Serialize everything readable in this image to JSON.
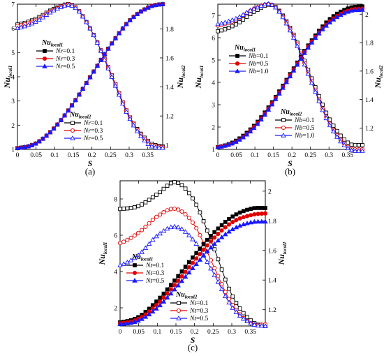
{
  "chart_data": [
    {
      "type": "line",
      "panel_label": "(a)",
      "xlabel": "S",
      "ylabel_left": {
        "main": "Nu",
        "sub": "local1"
      },
      "ylabel_right": {
        "main": "Nu",
        "sub": "local2"
      },
      "xlim": [
        0,
        0.39
      ],
      "ylim_left": [
        1,
        7
      ],
      "ylim_right": [
        0.97,
        1.97
      ],
      "xticks": [
        "0",
        "0.05",
        "0.1",
        "0.15",
        "0.2",
        "0.25",
        "0.3",
        "0.35"
      ],
      "yticks_left": [
        "1",
        "2",
        "3",
        "4",
        "5",
        "6",
        "7"
      ],
      "yticks_right": [
        "1",
        "1.2",
        "1.4",
        "1.6",
        "1.8"
      ],
      "legend_local1": {
        "title": {
          "main": "Nu",
          "sub": "local1"
        },
        "param": "Nr",
        "entries": [
          "=0.1",
          "=0.3",
          "=0.5"
        ]
      },
      "legend_local2": {
        "title": {
          "main": "Nu",
          "sub": "local2"
        },
        "param": "Nr",
        "entries": [
          "=0.1",
          "=0.3",
          "=0.5"
        ]
      },
      "local1_series": [
        {
          "x": [
            0,
            0.05,
            0.1,
            0.15,
            0.2,
            0.25,
            0.3,
            0.35,
            0.39
          ],
          "y": [
            1.05,
            1.25,
            1.9,
            2.9,
            4.1,
            5.3,
            6.3,
            6.85,
            7.0
          ]
        },
        {
          "x": [
            0,
            0.05,
            0.1,
            0.15,
            0.2,
            0.25,
            0.3,
            0.35,
            0.39
          ],
          "y": [
            1.05,
            1.25,
            1.9,
            2.9,
            4.1,
            5.3,
            6.3,
            6.85,
            7.0
          ]
        },
        {
          "x": [
            0,
            0.05,
            0.1,
            0.15,
            0.2,
            0.25,
            0.3,
            0.35,
            0.39
          ],
          "y": [
            1.05,
            1.25,
            1.9,
            2.9,
            4.1,
            5.3,
            6.3,
            6.85,
            7.0
          ]
        }
      ],
      "local2_series": [
        {
          "x": [
            0,
            0.05,
            0.1,
            0.15,
            0.2,
            0.25,
            0.3,
            0.35,
            0.39
          ],
          "y": [
            1.83,
            1.87,
            1.94,
            1.96,
            1.78,
            1.5,
            1.2,
            1.03,
            0.99
          ]
        },
        {
          "x": [
            0,
            0.05,
            0.1,
            0.15,
            0.2,
            0.25,
            0.3,
            0.35,
            0.39
          ],
          "y": [
            1.82,
            1.86,
            1.935,
            1.96,
            1.78,
            1.5,
            1.2,
            1.02,
            0.985
          ]
        },
        {
          "x": [
            0,
            0.05,
            0.1,
            0.15,
            0.2,
            0.25,
            0.3,
            0.35,
            0.39
          ],
          "y": [
            1.805,
            1.85,
            1.93,
            1.955,
            1.78,
            1.49,
            1.19,
            1.01,
            0.98
          ]
        }
      ]
    },
    {
      "type": "line",
      "panel_label": "(b)",
      "xlabel": "S",
      "ylabel_left": {
        "main": "Nu",
        "sub": "local1"
      },
      "ylabel_right": {
        "main": "Nu",
        "sub": "local2"
      },
      "xlim": [
        0,
        0.39
      ],
      "ylim_left": [
        1,
        7.5
      ],
      "ylim_right": [
        1.05,
        2.07
      ],
      "xticks": [
        "0",
        "0.05",
        "0.1",
        "0.15",
        "0.2",
        "0.25",
        "0.3",
        "0.35"
      ],
      "yticks_left": [
        "1",
        "2",
        "3",
        "4",
        "5",
        "6",
        "7"
      ],
      "yticks_right": [
        "1.2",
        "1.4",
        "1.6",
        "1.8",
        "2"
      ],
      "legend_local1": {
        "title": {
          "main": "Nu",
          "sub": "local1"
        },
        "param": "Nb",
        "entries": [
          "=0.1",
          "=0.5",
          "=1.0"
        ]
      },
      "legend_local2": {
        "title": {
          "main": "Nu",
          "sub": "local2"
        },
        "param": "Nb",
        "entries": [
          "=0.1",
          "=0.5",
          "=1.0"
        ]
      },
      "local1_series": [
        {
          "x": [
            0,
            0.05,
            0.1,
            0.15,
            0.2,
            0.25,
            0.3,
            0.35,
            0.39
          ],
          "y": [
            1.1,
            1.4,
            2.1,
            3.2,
            4.5,
            5.8,
            6.8,
            7.3,
            7.4
          ]
        },
        {
          "x": [
            0,
            0.05,
            0.1,
            0.15,
            0.2,
            0.25,
            0.3,
            0.35,
            0.39
          ],
          "y": [
            1.1,
            1.35,
            2.05,
            3.15,
            4.45,
            5.75,
            6.7,
            7.2,
            7.3
          ]
        },
        {
          "x": [
            0,
            0.05,
            0.1,
            0.15,
            0.2,
            0.25,
            0.3,
            0.35,
            0.39
          ],
          "y": [
            1.1,
            1.35,
            2.0,
            3.1,
            4.4,
            5.7,
            6.65,
            7.15,
            7.25
          ]
        }
      ],
      "local2_series": [
        {
          "x": [
            0,
            0.05,
            0.1,
            0.15,
            0.2,
            0.25,
            0.3,
            0.35,
            0.39
          ],
          "y": [
            1.88,
            1.93,
            2.02,
            2.06,
            1.88,
            1.57,
            1.27,
            1.1,
            1.08
          ]
        },
        {
          "x": [
            0,
            0.05,
            0.1,
            0.15,
            0.2,
            0.25,
            0.3,
            0.35,
            0.39
          ],
          "y": [
            1.92,
            1.96,
            2.04,
            2.06,
            1.87,
            1.55,
            1.24,
            1.07,
            1.05
          ]
        },
        {
          "x": [
            0,
            0.05,
            0.1,
            0.15,
            0.2,
            0.25,
            0.3,
            0.35,
            0.39
          ],
          "y": [
            1.93,
            1.97,
            2.04,
            2.06,
            1.86,
            1.54,
            1.23,
            1.06,
            1.04
          ]
        }
      ]
    },
    {
      "type": "line",
      "panel_label": "(c)",
      "xlabel": "S",
      "ylabel_left": {
        "main": "Nu",
        "sub": "local1"
      },
      "ylabel_right": {
        "main": "Nu",
        "sub": "local2"
      },
      "xlim": [
        0,
        0.39
      ],
      "ylim_left": [
        1,
        9
      ],
      "ylim_right": [
        1.09,
        2.07
      ],
      "xticks": [
        "0",
        "0.05",
        "0.1",
        "0.15",
        "0.2",
        "0.25",
        "0.3",
        "0.35"
      ],
      "yticks_left": [
        "2",
        "4",
        "6",
        "8"
      ],
      "yticks_right": [
        "1.2",
        "1.4",
        "1.6",
        "1.8",
        "2"
      ],
      "legend_local1": {
        "title": {
          "main": "Nu",
          "sub": "local1"
        },
        "param": "Nt",
        "entries": [
          "=0.1",
          "=0.3",
          "=0.5"
        ]
      },
      "legend_local2": {
        "title": {
          "main": "Nu",
          "sub": "local2"
        },
        "param": "Nt",
        "entries": [
          "=0.1",
          "=0.3",
          "=0.5"
        ]
      },
      "local1_series": [
        {
          "x": [
            0,
            0.05,
            0.1,
            0.15,
            0.2,
            0.25,
            0.3,
            0.35,
            0.39
          ],
          "y": [
            1.2,
            1.5,
            2.4,
            3.6,
            4.9,
            6.1,
            7.0,
            7.45,
            7.5
          ]
        },
        {
          "x": [
            0,
            0.05,
            0.1,
            0.15,
            0.2,
            0.25,
            0.3,
            0.35,
            0.39
          ],
          "y": [
            1.15,
            1.4,
            2.2,
            3.35,
            4.6,
            5.8,
            6.7,
            7.1,
            7.2
          ]
        },
        {
          "x": [
            0,
            0.05,
            0.1,
            0.15,
            0.2,
            0.25,
            0.3,
            0.35,
            0.39
          ],
          "y": [
            1.1,
            1.3,
            2.0,
            3.1,
            4.3,
            5.45,
            6.3,
            6.7,
            6.75
          ]
        }
      ],
      "local2_series": [
        {
          "x": [
            0,
            0.05,
            0.1,
            0.15,
            0.2,
            0.25,
            0.3,
            0.35,
            0.39
          ],
          "y": [
            1.88,
            1.9,
            1.98,
            2.06,
            1.93,
            1.63,
            1.3,
            1.13,
            1.09
          ]
        },
        {
          "x": [
            0,
            0.05,
            0.1,
            0.15,
            0.2,
            0.25,
            0.3,
            0.35,
            0.39
          ],
          "y": [
            1.65,
            1.72,
            1.83,
            1.88,
            1.77,
            1.5,
            1.24,
            1.11,
            1.1
          ]
        },
        {
          "x": [
            0,
            0.05,
            0.1,
            0.15,
            0.2,
            0.25,
            0.3,
            0.35,
            0.39
          ],
          "y": [
            1.5,
            1.57,
            1.7,
            1.76,
            1.66,
            1.45,
            1.22,
            1.11,
            1.09
          ]
        }
      ]
    }
  ],
  "series_colors": [
    "#000000",
    "#e00000",
    "#1a1aff"
  ],
  "markers": {
    "local1": "filled",
    "local2": "hollow",
    "shapes": [
      "square",
      "circle",
      "triangle"
    ]
  }
}
